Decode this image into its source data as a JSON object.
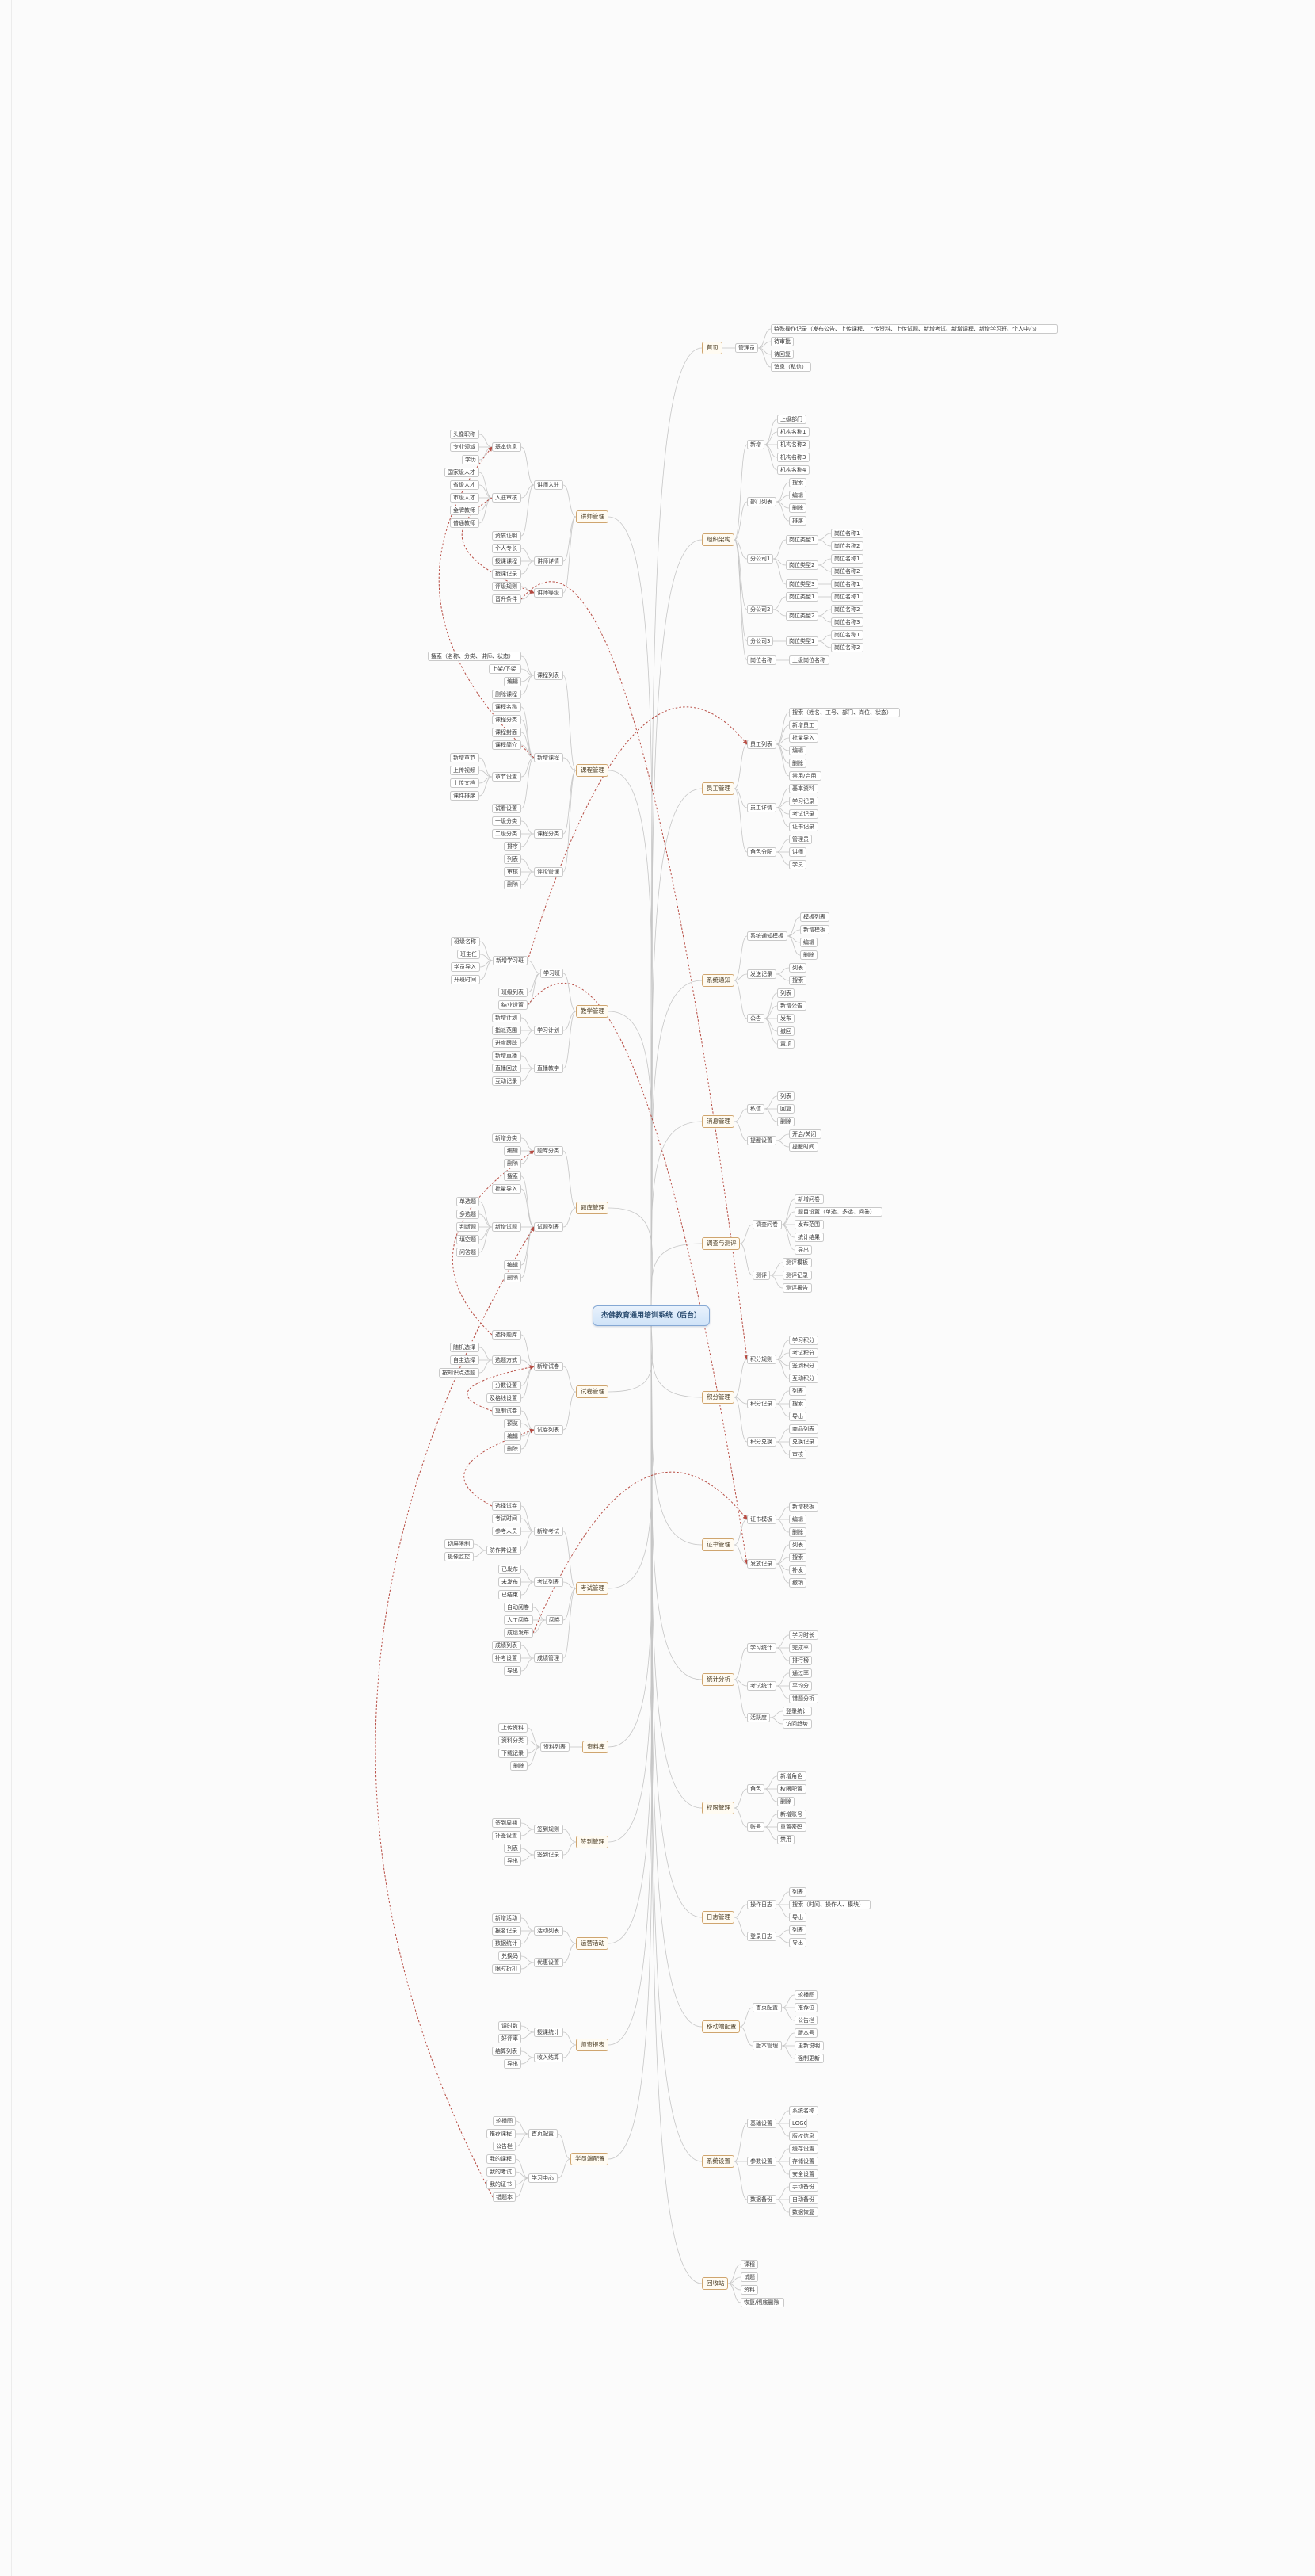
{
  "root": {
    "label": "杰佛教育通用培训系统（后台）"
  },
  "colors": {
    "canvas_bg": "#fbfbfb",
    "connector": "#c6c6c6",
    "relationship": "#b03a30",
    "central_bg": "#cfe3f8",
    "central_border": "#85a8d4",
    "branch_border": "#cfa56f",
    "topic_border": "#c9c9c9"
  },
  "right": [
    [
      "首页",
      [
        [
          "管理员",
          [
            "特殊操作记录（发布公告、上传课程、上传资料、上传试题、新增考试、新增课程、新增学习班、个人中心）",
            "待审批",
            "待回复",
            "消息（私信）"
          ]
        ]
      ]
    ],
    [
      "组织架构",
      [
        [
          "新增",
          [
            "上级部门",
            "机构名称1",
            "机构名称2",
            "机构名称3",
            "机构名称4"
          ]
        ],
        [
          "部门列表",
          [
            "搜索",
            "编辑",
            "删除",
            "排序"
          ]
        ],
        [
          "分公司1",
          [
            [
              "岗位类型1",
              [
                "岗位名称1",
                "岗位名称2"
              ]
            ],
            [
              "岗位类型2",
              [
                "岗位名称1",
                "岗位名称2"
              ]
            ],
            [
              "岗位类型3",
              [
                "岗位名称1"
              ]
            ]
          ]
        ],
        [
          "分公司2",
          [
            [
              "岗位类型1",
              [
                "岗位名称1"
              ]
            ],
            [
              "岗位类型2",
              [
                "岗位名称2",
                "岗位名称3"
              ]
            ]
          ]
        ],
        [
          "分公司3",
          [
            [
              "岗位类型1",
              [
                "岗位名称1",
                "岗位名称2"
              ]
            ]
          ]
        ],
        [
          "岗位名称",
          [
            "上级岗位名称"
          ]
        ]
      ]
    ],
    [
      "员工管理",
      [
        [
          "员工列表",
          [
            "搜索（姓名、工号、部门、岗位、状态）",
            "新增员工",
            "批量导入",
            "编辑",
            "删除",
            "禁用/启用"
          ]
        ],
        [
          "员工详情",
          [
            "基本资料",
            "学习记录",
            "考试记录",
            "证书记录"
          ]
        ],
        [
          "角色分配",
          [
            "管理员",
            "讲师",
            "学员"
          ]
        ]
      ]
    ],
    [
      "系统通知",
      [
        [
          "系统通知模板",
          [
            "模板列表",
            "新增模板",
            "编辑",
            "删除"
          ]
        ],
        [
          "发送记录",
          [
            "列表",
            "搜索"
          ]
        ],
        [
          "公告",
          [
            "列表",
            "新增公告",
            "发布",
            "撤回",
            "置顶"
          ]
        ]
      ]
    ],
    [
      "消息管理",
      [
        [
          "私信",
          [
            "列表",
            "回复",
            "删除"
          ]
        ],
        [
          "提醒设置",
          [
            "开启/关闭",
            "提醒时间"
          ]
        ]
      ]
    ],
    [
      "调查与测评",
      [
        [
          "调查问卷",
          [
            "新增问卷",
            "题目设置（单选、多选、问答）",
            "发布范围",
            "统计结果",
            "导出"
          ]
        ],
        [
          "测评",
          [
            "测评模板",
            "测评记录",
            "测评报告"
          ]
        ]
      ]
    ],
    [
      "积分管理",
      [
        [
          "积分规则",
          [
            "学习积分",
            "考试积分",
            "签到积分",
            "互动积分"
          ]
        ],
        [
          "积分记录",
          [
            "列表",
            "搜索",
            "导出"
          ]
        ],
        [
          "积分兑换",
          [
            "商品列表",
            "兑换记录",
            "审核"
          ]
        ]
      ]
    ],
    [
      "证书管理",
      [
        [
          "证书模板",
          [
            "新增模板",
            "编辑",
            "删除"
          ]
        ],
        [
          "发放记录",
          [
            "列表",
            "搜索",
            "补发",
            "撤销"
          ]
        ]
      ]
    ],
    [
      "统计分析",
      [
        [
          "学习统计",
          [
            "学习时长",
            "完成率",
            "排行榜"
          ]
        ],
        [
          "考试统计",
          [
            "通过率",
            "平均分",
            "错题分析"
          ]
        ],
        [
          "活跃度",
          [
            "登录统计",
            "访问趋势"
          ]
        ]
      ]
    ],
    [
      "权限管理",
      [
        [
          "角色",
          [
            "新增角色",
            "权限配置",
            "删除"
          ]
        ],
        [
          "账号",
          [
            "新增账号",
            "重置密码",
            "禁用"
          ]
        ]
      ]
    ],
    [
      "日志管理",
      [
        [
          "操作日志",
          [
            "列表",
            "搜索（时间、操作人、模块）",
            "导出"
          ]
        ],
        [
          "登录日志",
          [
            "列表",
            "导出"
          ]
        ]
      ]
    ],
    [
      "移动端配置",
      [
        [
          "首页配置",
          [
            "轮播图",
            "推荐位",
            "公告栏"
          ]
        ],
        [
          "版本管理",
          [
            "版本号",
            "更新说明",
            "强制更新"
          ]
        ]
      ]
    ],
    [
      "系统设置",
      [
        [
          "基础设置",
          [
            "系统名称",
            "LOGO",
            "版权信息"
          ]
        ],
        [
          "参数设置",
          [
            "缓存设置",
            "存储设置",
            "安全设置"
          ]
        ],
        [
          "数据备份",
          [
            "手动备份",
            "自动备份",
            "数据恢复"
          ]
        ]
      ]
    ],
    [
      "回收站",
      [
        "课程",
        "试题",
        "资料",
        "恢复/彻底删除"
      ]
    ]
  ],
  "left": [
    [
      "讲师管理",
      [
        [
          "讲师入驻",
          [
            [
              "基本信息",
              [
                "头像职称",
                "专业领域",
                "学历"
              ]
            ],
            [
              "入驻审核",
              [
                "国家级人才",
                "省级人才",
                "市级人才",
                "金牌教师",
                "普通教师"
              ]
            ],
            "资质证明"
          ]
        ],
        [
          "讲师详情",
          [
            "个人专长",
            "授课课程",
            "授课记录"
          ]
        ],
        [
          "讲师等级",
          [
            "评级规则",
            "晋升条件"
          ]
        ]
      ]
    ],
    [
      "课程管理",
      [
        [
          "课程列表",
          [
            "搜索（名称、分类、讲师、状态）",
            "上架/下架",
            "编辑",
            "删除课程"
          ]
        ],
        [
          "新增课程",
          [
            "课程名称",
            "课程分类",
            "课程封面",
            "课程简介",
            [
              "章节设置",
              [
                "新增章节",
                "上传视频",
                "上传文档",
                "课件排序"
              ]
            ],
            "试看设置"
          ]
        ],
        [
          "课程分类",
          [
            "一级分类",
            "二级分类",
            "排序"
          ]
        ],
        [
          "评论管理",
          [
            "列表",
            "审核",
            "删除"
          ]
        ]
      ]
    ],
    [
      "教学管理",
      [
        [
          "学习班",
          [
            [
              "新增学习班",
              [
                "班级名称",
                "班主任",
                "学员导入",
                "开班时间"
              ]
            ],
            "班级列表",
            "结业设置"
          ]
        ],
        [
          "学习计划",
          [
            "新增计划",
            "指派范围",
            "进度跟踪"
          ]
        ],
        [
          "直播教学",
          [
            "新增直播",
            "直播回放",
            "互动记录"
          ]
        ]
      ]
    ],
    [
      "题库管理",
      [
        [
          "题库分类",
          [
            "新增分类",
            "编辑",
            "删除"
          ]
        ],
        [
          "试题列表",
          [
            "搜索",
            "批量导入",
            [
              "新增试题",
              [
                "单选题",
                "多选题",
                "判断题",
                "填空题",
                "问答题"
              ]
            ],
            "编辑",
            "删除"
          ]
        ]
      ]
    ],
    [
      "试卷管理",
      [
        [
          "新增试卷",
          [
            "选择题库",
            [
              "选题方式",
              [
                "随机选择",
                "自主选择",
                "按知识点选题"
              ]
            ],
            "分数设置",
            "及格线设置"
          ]
        ],
        [
          "试卷列表",
          [
            "复制试卷",
            "预览",
            "编辑",
            "删除"
          ]
        ]
      ]
    ],
    [
      "考试管理",
      [
        [
          "新增考试",
          [
            "选择试卷",
            "考试时间",
            "参考人员",
            [
              "防作弊设置",
              [
                "切屏限制",
                "摄像监控"
              ]
            ]
          ]
        ],
        [
          "考试列表",
          [
            "已发布",
            "未发布",
            "已结束"
          ]
        ],
        [
          "阅卷",
          [
            "自动阅卷",
            "人工阅卷",
            "成绩发布"
          ]
        ],
        [
          "成绩管理",
          [
            "成绩列表",
            "补考设置",
            "导出"
          ]
        ]
      ]
    ],
    [
      "资料库",
      [
        [
          "资料列表",
          [
            "上传资料",
            "资料分类",
            "下载记录",
            "删除"
          ]
        ]
      ]
    ],
    [
      "签到管理",
      [
        [
          "签到规则",
          [
            "签到周期",
            "补签设置"
          ]
        ],
        [
          "签到记录",
          [
            "列表",
            "导出"
          ]
        ]
      ]
    ],
    [
      "运营活动",
      [
        [
          "活动列表",
          [
            "新增活动",
            "报名记录",
            "数据统计"
          ]
        ],
        [
          "优惠设置",
          [
            "兑换码",
            "限时折扣"
          ]
        ]
      ]
    ],
    [
      "师资报表",
      [
        [
          "授课统计",
          [
            "课时数",
            "好评率"
          ]
        ],
        [
          "收入结算",
          [
            "结算列表",
            "导出"
          ]
        ]
      ]
    ],
    [
      "学员端配置",
      [
        [
          "首页配置",
          [
            "轮播图",
            "推荐课程",
            "公告栏"
          ]
        ],
        [
          "学习中心",
          [
            "我的课程",
            "我的考试",
            "我的证书",
            "错题本"
          ]
        ]
      ]
    ]
  ],
  "relationships": [
    {
      "from": "入驻审核",
      "to": "讲师等级"
    },
    {
      "from": "新增课程",
      "to": "基本信息"
    },
    {
      "from": "复制试卷",
      "to": "新增试卷"
    },
    {
      "from": "选择题库",
      "to": "题库分类"
    },
    {
      "from": "选择试卷",
      "to": "试卷列表"
    },
    {
      "from": "错题本",
      "to": "试题列表"
    },
    {
      "from": "成绩发布",
      "to": "证书模板"
    },
    {
      "from": "结业设置",
      "to": "发放记录"
    },
    {
      "from": "新增学习班",
      "to": "员工列表"
    },
    {
      "from": "晋升条件",
      "to": "积分规则"
    }
  ]
}
